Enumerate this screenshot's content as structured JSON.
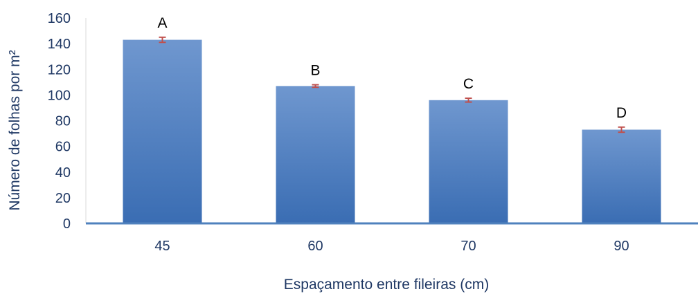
{
  "chart_data": {
    "type": "bar",
    "title": "",
    "xlabel": "Espaçamento entre fileiras (cm)",
    "ylabel": "Número de folhas por m²",
    "categories": [
      "45",
      "60",
      "70",
      "90"
    ],
    "values": [
      143,
      107,
      96,
      73
    ],
    "errors": [
      2,
      1,
      1.5,
      2
    ],
    "significance_letters": [
      "A",
      "B",
      "C",
      "D"
    ],
    "ylim": [
      0,
      160
    ],
    "yticks": [
      "0",
      "20",
      "40",
      "60",
      "80",
      "100",
      "120",
      "140",
      "160"
    ],
    "grid": false,
    "legend": "none",
    "colors": {
      "bar_top": "#6f97cf",
      "bar_bottom": "#3a6db3",
      "error_bar": "#c0504d",
      "axis_line": "#4f81bd",
      "text": "#1f3864"
    }
  }
}
